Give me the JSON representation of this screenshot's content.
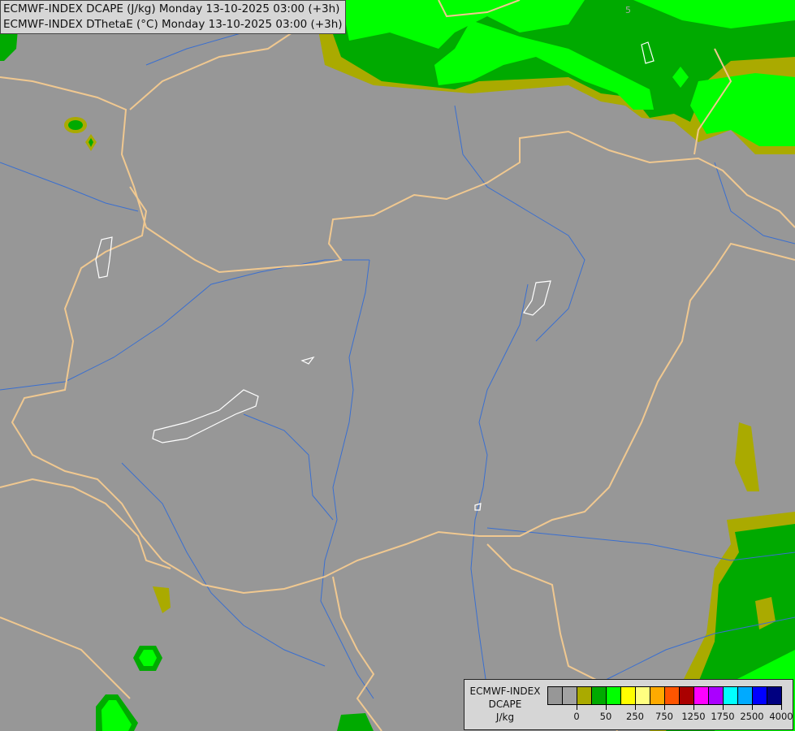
{
  "title": {
    "line1": "ECMWF-INDEX DCAPE (J/kg) Monday 13-10-2025 03:00 (+3h)",
    "line2": "ECMWF-INDEX DThetaE (°C) Monday 13-10-2025 03:00 (+3h)"
  },
  "map": {
    "background_color": "#979797",
    "border_color": "#f0c890",
    "river_color": "#3a6fd0",
    "lake_outline_color": "#ffffff",
    "contour_label": "5"
  },
  "legend": {
    "line1": "ECMWF-INDEX",
    "line2": "DCAPE",
    "unit": "J/kg",
    "colors": [
      "#979797",
      "#a2a2a2",
      "#aaaa00",
      "#00aa00",
      "#00ff00",
      "#ffff00",
      "#ffff80",
      "#ffaa00",
      "#ff5500",
      "#aa0000",
      "#ff00ff",
      "#aa00ff",
      "#00ffff",
      "#00aaff",
      "#0000ff",
      "#000080"
    ],
    "tick_labels": [
      "0",
      "50",
      "250",
      "750",
      "1250",
      "1750",
      "2500",
      "4000"
    ]
  }
}
